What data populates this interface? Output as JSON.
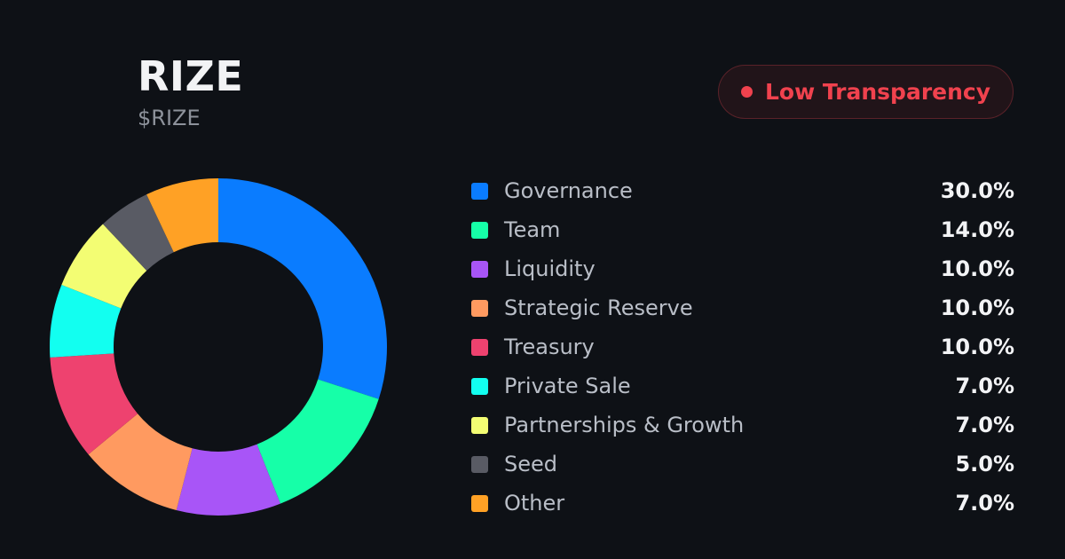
{
  "header": {
    "name": "RIZE",
    "symbol": "$RIZE"
  },
  "badge": {
    "label": "Low Transparency",
    "color": "#f0424e",
    "icon": "status-dot-icon"
  },
  "chart_data": {
    "type": "pie",
    "subtype": "donut",
    "legend_position": "right",
    "categories": [
      "Governance",
      "Team",
      "Liquidity",
      "Strategic Reserve",
      "Treasury",
      "Private Sale",
      "Partnerships & Growth",
      "Seed",
      "Other"
    ],
    "values": [
      30.0,
      14.0,
      10.0,
      10.0,
      10.0,
      7.0,
      7.0,
      5.0,
      7.0
    ],
    "value_labels": [
      "30.0%",
      "14.0%",
      "10.0%",
      "10.0%",
      "10.0%",
      "7.0%",
      "7.0%",
      "5.0%",
      "7.0%"
    ],
    "colors": [
      "#0a7cff",
      "#16ffa8",
      "#a855f7",
      "#ff9a60",
      "#ee426f",
      "#12fff0",
      "#f3fd73",
      "#595b64",
      "#ffa125"
    ]
  }
}
